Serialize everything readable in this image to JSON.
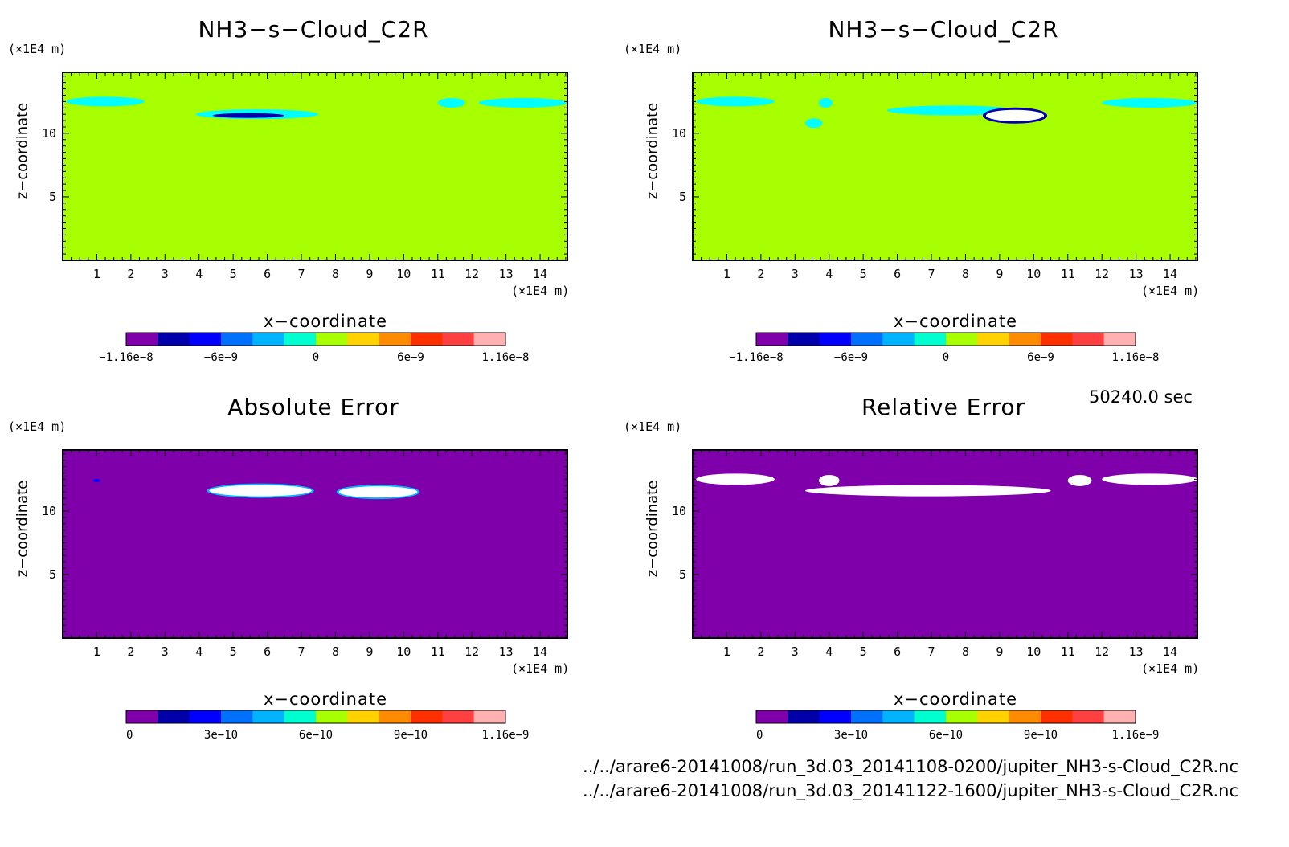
{
  "time_label": "50240.0 sec",
  "files": [
    "../../arare6-20141008/run_3d.03_20141108-0200/jupiter_NH3-s-Cloud_C2R.nc",
    "../../arare6-20141008/run_3d.03_20141122-1600/jupiter_NH3-s-Cloud_C2R.nc"
  ],
  "axis_unit": "(×1E4 m)",
  "xlabel": "x−coordinate",
  "ylabel": "z−coordinate",
  "xticks": [
    "1",
    "2",
    "3",
    "4",
    "5",
    "6",
    "7",
    "8",
    "9",
    "10",
    "11",
    "12",
    "13",
    "14"
  ],
  "yticks": [
    "5",
    "10"
  ],
  "colors": {
    "levels": [
      "#7f00aa",
      "#0000aa",
      "#0000ff",
      "#0070ff",
      "#00b4ff",
      "#00ffd0",
      "#a8ff00",
      "#ffd200",
      "#ff8c00",
      "#ff3000",
      "#ff4040",
      "#ffb0b0"
    ],
    "background_high": "#a8ff00",
    "background_low": "#7f00aa",
    "anomaly": "#ffffff",
    "cloud_low": "#00ffff",
    "cloud_core": "#0000aa"
  },
  "chart_data": [
    {
      "type": "heatmap",
      "title": "NH3−s−Cloud_C2R",
      "xlim": [
        0,
        14.8
      ],
      "ylim": [
        0,
        14.8
      ],
      "colorbar": {
        "range": [
          -1.16e-08,
          1.16e-08
        ],
        "ticks": [
          "−1.16e−8",
          "−6e−9",
          "0",
          "6e−9",
          "1.16e−8"
        ]
      },
      "features": [
        {
          "x": [
            0.1,
            2.4
          ],
          "z": 12.5,
          "value": "cyan"
        },
        {
          "x": [
            3.9,
            7.5
          ],
          "z": 11.5,
          "value": "cyan"
        },
        {
          "x": [
            4.4,
            6.5
          ],
          "z": 11.4,
          "value": "core"
        },
        {
          "x": [
            11.0,
            11.8
          ],
          "z": 12.4,
          "value": "cyan"
        },
        {
          "x": [
            12.2,
            14.8
          ],
          "z": 12.4,
          "value": "cyan"
        }
      ]
    },
    {
      "type": "heatmap",
      "title": "NH3−s−Cloud_C2R",
      "xlim": [
        0,
        14.8
      ],
      "ylim": [
        0,
        14.8
      ],
      "colorbar": {
        "range": [
          -1.16e-08,
          1.16e-08
        ],
        "ticks": [
          "−1.16e−8",
          "−6e−9",
          "0",
          "6e−9",
          "1.16e−8"
        ]
      },
      "features": [
        {
          "x": [
            0.1,
            2.4
          ],
          "z": 12.5,
          "value": "cyan"
        },
        {
          "x": [
            3.7,
            4.1
          ],
          "z": 12.4,
          "value": "cyan"
        },
        {
          "x": [
            3.3,
            3.8
          ],
          "z": 10.8,
          "value": "cyan"
        },
        {
          "x": [
            5.7,
            9.5
          ],
          "z": 11.8,
          "value": "cyan"
        },
        {
          "x": [
            8.6,
            10.3
          ],
          "z": 11.4,
          "value": "white"
        },
        {
          "x": [
            12.0,
            14.8
          ],
          "z": 12.4,
          "value": "cyan"
        }
      ]
    },
    {
      "type": "heatmap",
      "title": "Absolute Error",
      "xlim": [
        0,
        14.8
      ],
      "ylim": [
        0,
        14.8
      ],
      "colorbar": {
        "range": [
          0,
          1.16e-09
        ],
        "ticks": [
          "0",
          "3e−10",
          "6e−10",
          "9e−10",
          "1.16e−9"
        ]
      },
      "features": [
        {
          "x": [
            0.9,
            1.1
          ],
          "z": 12.4,
          "value": "blue"
        },
        {
          "x": [
            4.3,
            7.3
          ],
          "z": 11.6,
          "value": "white"
        },
        {
          "x": [
            8.1,
            10.4
          ],
          "z": 11.5,
          "value": "white"
        }
      ]
    },
    {
      "type": "heatmap",
      "title": "Relative Error",
      "xlim": [
        0,
        14.8
      ],
      "ylim": [
        0,
        14.8
      ],
      "colorbar": {
        "range": [
          0,
          1.16e-09
        ],
        "ticks": [
          "0",
          "3e−10",
          "6e−10",
          "9e−10",
          "1.16e−9"
        ]
      },
      "features": [
        {
          "x": [
            0.1,
            2.4
          ],
          "z": 12.5,
          "value": "white"
        },
        {
          "x": [
            3.7,
            4.3
          ],
          "z": 12.4,
          "value": "white"
        },
        {
          "x": [
            3.3,
            10.5
          ],
          "z": 11.6,
          "value": "white"
        },
        {
          "x": [
            11.0,
            11.7
          ],
          "z": 12.4,
          "value": "white"
        },
        {
          "x": [
            12.0,
            14.8
          ],
          "z": 12.5,
          "value": "white"
        }
      ]
    }
  ]
}
